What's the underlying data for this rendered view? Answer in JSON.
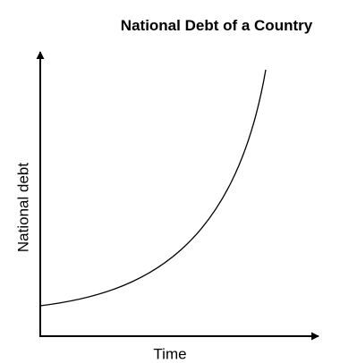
{
  "title": "National Debt of a Country",
  "x_axis_label": "Time",
  "y_axis_label": "National debt"
}
